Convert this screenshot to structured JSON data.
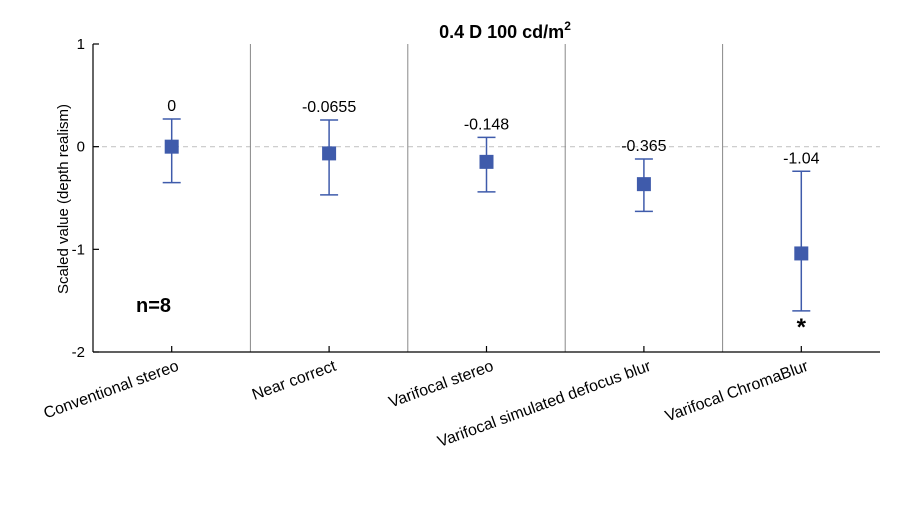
{
  "chart_data": {
    "type": "scatter",
    "title": "0.4 D 100 cd/m",
    "title_sup": "2",
    "ylabel": "Scaled value (depth realism)",
    "ylim": [
      -2,
      1
    ],
    "yticks": [
      {
        "value": 1,
        "label": "1"
      },
      {
        "value": 0,
        "label": "0"
      },
      {
        "value": -1,
        "label": "-1"
      },
      {
        "value": -2,
        "label": "-2"
      }
    ],
    "categories": [
      "Conventional stereo",
      "Near correct",
      "Varifocal stereo",
      "Varifocal simulated defocus blur",
      "Varifocal ChromaBlur"
    ],
    "points": [
      {
        "value": 0,
        "lower": -0.35,
        "upper": 0.27,
        "label": "0"
      },
      {
        "value": -0.0655,
        "lower": -0.47,
        "upper": 0.26,
        "label": "-0.0655"
      },
      {
        "value": -0.148,
        "lower": -0.44,
        "upper": 0.09,
        "label": "-0.148"
      },
      {
        "value": -0.365,
        "lower": -0.63,
        "upper": -0.12,
        "label": "-0.365"
      },
      {
        "value": -1.04,
        "lower": -1.6,
        "upper": -0.24,
        "label": "-1.04"
      }
    ],
    "significance_marker": {
      "category_index": 4,
      "text": "*"
    },
    "sample_size_label": "n=8",
    "zero_line": "dashed",
    "category_separators": true,
    "colors": {
      "marker": "#3f5bab",
      "errorbar": "#3f5bab",
      "zero_line": "#c8c8c8",
      "separator": "#888888",
      "axis": "#000000"
    }
  }
}
